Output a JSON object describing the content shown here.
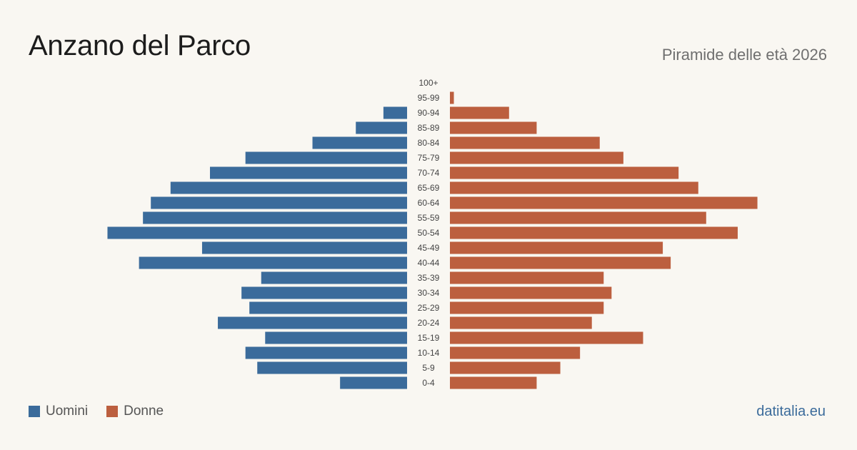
{
  "title": "Anzano del Parco",
  "subtitle": "Piramide delle età 2026",
  "source": "datitalia.eu",
  "colors": {
    "male": "#3b6b9b",
    "female": "#bc5f3f",
    "source": "#3b6b9b",
    "background": "#f9f7f2"
  },
  "legend": [
    {
      "label": "Uomini",
      "color": "#3b6b9b"
    },
    {
      "label": "Donne",
      "color": "#bc5f3f"
    }
  ],
  "chart_data": {
    "type": "bar",
    "orientation": "horizontal",
    "layout": "population-pyramid",
    "categories": [
      "100+",
      "95-99",
      "90-94",
      "85-89",
      "80-84",
      "75-79",
      "70-74",
      "65-69",
      "60-64",
      "55-59",
      "50-54",
      "45-49",
      "40-44",
      "35-39",
      "30-34",
      "25-29",
      "20-24",
      "15-19",
      "10-14",
      "5-9",
      "0-4"
    ],
    "series": [
      {
        "name": "Uomini",
        "side": "left",
        "color": "#3b6b9b",
        "values": [
          0,
          0,
          6,
          13,
          24,
          41,
          50,
          60,
          65,
          67,
          76,
          52,
          68,
          37,
          42,
          40,
          48,
          36,
          41,
          38,
          17
        ]
      },
      {
        "name": "Donne",
        "side": "right",
        "color": "#bc5f3f",
        "values": [
          0,
          1,
          15,
          22,
          38,
          44,
          58,
          63,
          78,
          65,
          73,
          54,
          56,
          39,
          41,
          39,
          36,
          49,
          33,
          28,
          22
        ]
      }
    ],
    "xlim": [
      0,
      80
    ],
    "grid": false,
    "legend_position": "bottom-left"
  }
}
